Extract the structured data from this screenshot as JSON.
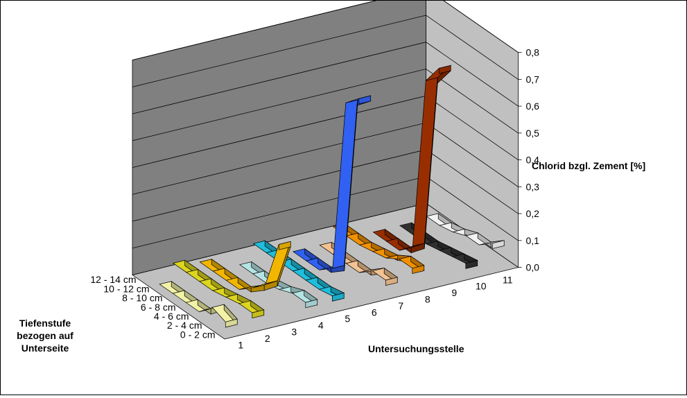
{
  "chart_data": {
    "type": "3d-line-ribbon",
    "title": "",
    "zlabel": "Chlorid bzgl. Zement [%]",
    "xlabel": "Untersuchungsstelle",
    "ylabel": "Tiefenstufe bezogen auf Unterseite",
    "zlim": [
      0,
      0.8
    ],
    "z_ticks": [
      "0,0",
      "0,1",
      "0,2",
      "0,3",
      "0,4",
      "0,5",
      "0,6",
      "0,7",
      "0,8"
    ],
    "x_categories": [
      "1",
      "2",
      "3",
      "4",
      "5",
      "6",
      "7",
      "8",
      "9",
      "10",
      "11"
    ],
    "depth_categories": [
      "0 - 2 cm",
      "2 - 4 cm",
      "4 - 6 cm",
      "6 - 8 cm",
      "8 - 10 cm",
      "10 - 12 cm",
      "12 - 14 cm"
    ],
    "series": [
      {
        "x": "1",
        "color": "#FFFFB0",
        "values": [
          0.04,
          0.06,
          0.01,
          0.01,
          0.01,
          0.01,
          null
        ]
      },
      {
        "x": "2",
        "color": "#E8E020",
        "values": [
          0.05,
          0.05,
          0.04,
          0.03,
          0.03,
          0.03,
          0.03
        ]
      },
      {
        "x": "3",
        "color": "#FFC000",
        "values": [
          0.28,
          0.1,
          0.05,
          0.01,
          0.01,
          0.01,
          0.01
        ]
      },
      {
        "x": "4",
        "color": "#C0F0F0",
        "values": [
          0.04,
          0.04,
          0.02,
          0.01,
          0.01,
          0.01,
          null
        ]
      },
      {
        "x": "5",
        "color": "#20C8E8",
        "values": [
          0.04,
          0.03,
          0.03,
          0.03,
          0.03,
          0.03,
          0.03
        ]
      },
      {
        "x": "6",
        "color": "#3366FF",
        "values": [
          0.75,
          0.7,
          0.05,
          0.01,
          0.01,
          0.01,
          null
        ]
      },
      {
        "x": "7",
        "color": "#FFCC99",
        "values": [
          0.05,
          0.05,
          0.01,
          0.01,
          0.01,
          0.01,
          null
        ]
      },
      {
        "x": "8",
        "color": "#FF9900",
        "values": [
          0.07,
          0.07,
          0.04,
          0.03,
          0.02,
          0.02,
          0.02
        ]
      },
      {
        "x": "9",
        "color": "#A03000",
        "values": [
          0.79,
          0.71,
          0.06,
          0.01,
          0.01,
          0.01,
          null
        ]
      },
      {
        "x": "10",
        "color": "#333333",
        "values": [
          0.04,
          0.03,
          0.02,
          0.01,
          0.01,
          0.01,
          null
        ]
      },
      {
        "x": "11",
        "color": "#FFFFFF",
        "values": [
          0.09,
          0.05,
          0.05,
          0.03,
          0.02,
          0.02,
          null
        ]
      }
    ],
    "grid": true,
    "legend": "none"
  }
}
